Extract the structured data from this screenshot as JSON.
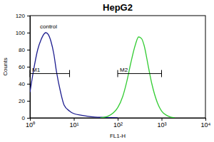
{
  "chart_data": {
    "type": "line",
    "title": "HepG2",
    "x_label": "FL1-H",
    "y_label": "Counts",
    "log": "x",
    "xlim": [
      1,
      10000
    ],
    "xticks": [
      {
        "value": 1,
        "label": "10⁰"
      },
      {
        "value": 10,
        "label": "10¹"
      },
      {
        "value": 100,
        "label": "10²"
      },
      {
        "value": 1000,
        "label": "10³"
      },
      {
        "value": 10000,
        "label": "10⁴"
      }
    ],
    "ylim": [
      0,
      120
    ],
    "yticks": [
      0,
      20,
      40,
      60,
      80,
      100,
      120
    ],
    "annotations": [
      "control"
    ],
    "gates": [
      {
        "label": "M1",
        "range": [
          1,
          8
        ],
        "y": 52
      },
      {
        "label": "M2",
        "range": [
          100,
          1000
        ],
        "y": 52
      }
    ],
    "series": [
      {
        "color": "#1c1c8f",
        "x": [
          1,
          1.2,
          1.5,
          1.8,
          2,
          2.3,
          2.6,
          3,
          3.5,
          4,
          5,
          6,
          8,
          10,
          15,
          20,
          30,
          50,
          100
        ],
        "values": [
          30,
          55,
          80,
          92,
          97,
          100,
          98,
          90,
          75,
          55,
          30,
          15,
          8,
          5,
          3,
          2,
          1,
          0.5,
          0
        ]
      },
      {
        "color": "#33cc33",
        "x": [
          40,
          60,
          80,
          100,
          130,
          160,
          200,
          250,
          300,
          350,
          400,
          500,
          600,
          800,
          1000,
          1300,
          1600,
          2000
        ],
        "values": [
          0,
          2,
          6,
          12,
          25,
          42,
          65,
          85,
          95,
          93,
          85,
          60,
          40,
          18,
          8,
          3,
          1,
          0
        ]
      }
    ]
  }
}
